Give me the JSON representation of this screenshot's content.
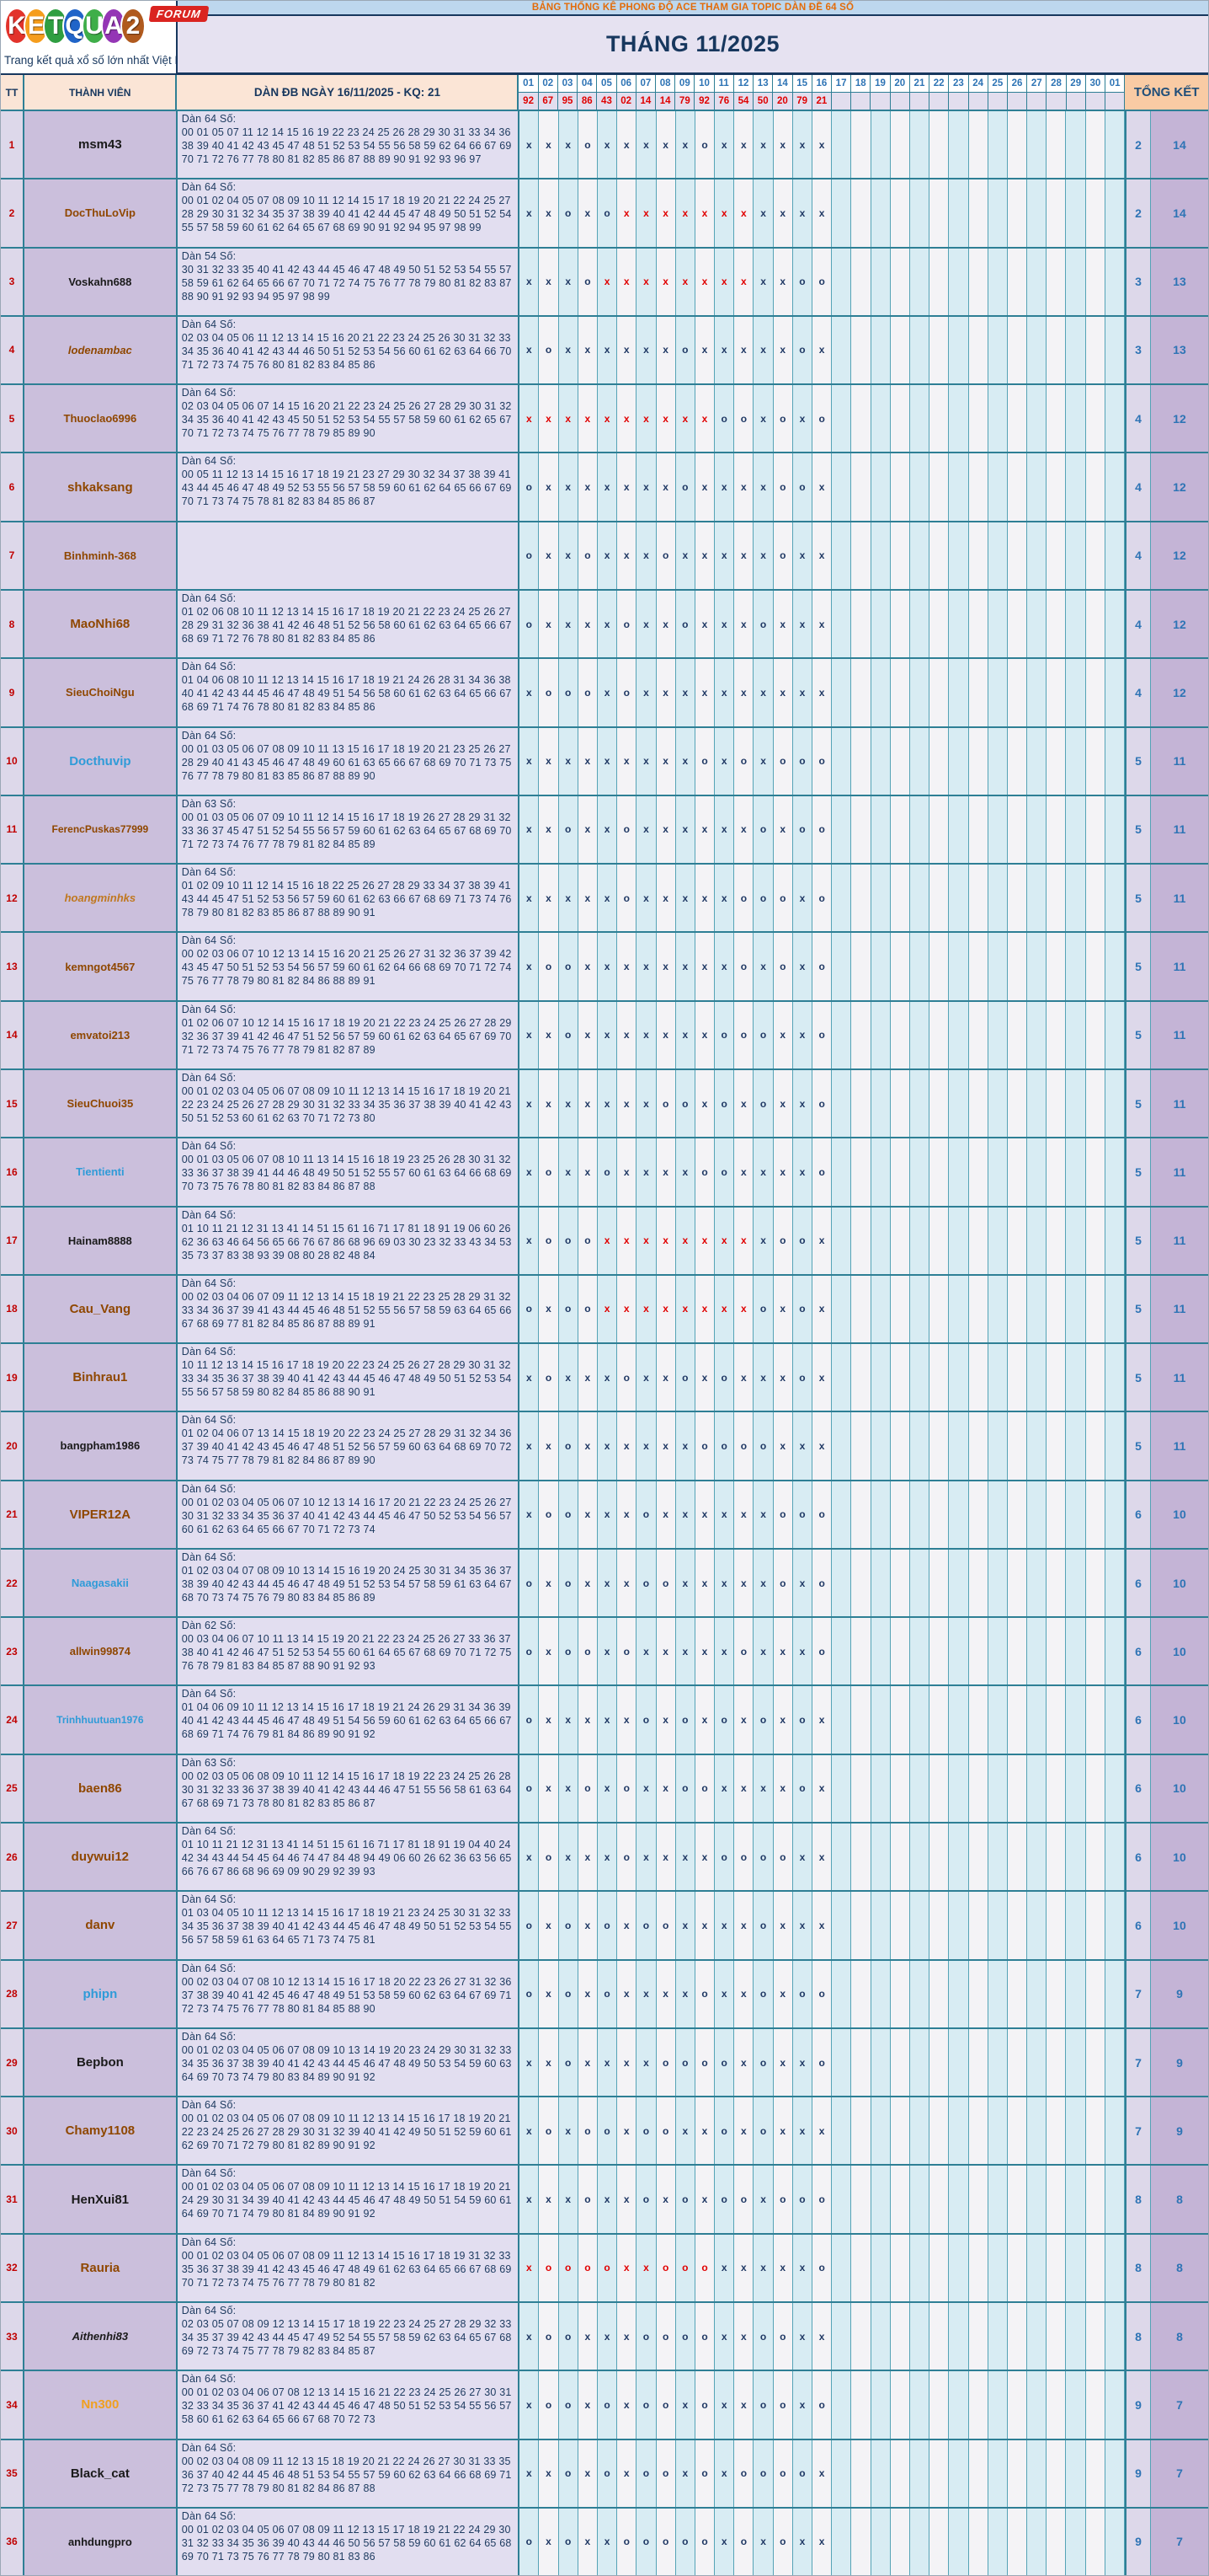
{
  "logo": {
    "letters": [
      {
        "char": "K",
        "color": "#e2332b"
      },
      {
        "char": "E",
        "color": "#f59d1c"
      },
      {
        "char": "T",
        "color": "#2f9e41"
      },
      {
        "char": "Q",
        "color": "#2064c8"
      },
      {
        "char": "U",
        "color": "#3fae49"
      },
      {
        "char": "A",
        "color": "#9436b5"
      },
      {
        "char": "2",
        "color": "#b05a1e"
      }
    ],
    "forum_badge": "FORUM",
    "tagline": "Trang kết quả xổ số lớn nhất Việt Nam"
  },
  "banner": {
    "text": "BẢNG THỐNG KÊ PHONG ĐỘ ACE THAM GIA TOPIC DÀN ĐỀ 64 SỐ"
  },
  "title": "THÁNG 11/2025",
  "table": {
    "headers": {
      "tt": "TT",
      "member": "THÀNH VIÊN",
      "dan": "DÀN ĐB NGÀY 16/11/2025 - KQ: 21",
      "total": "TỔNG KẾT"
    },
    "day_columns": [
      "01",
      "02",
      "03",
      "04",
      "05",
      "06",
      "07",
      "08",
      "09",
      "10",
      "11",
      "12",
      "13",
      "14",
      "15",
      "16",
      "17",
      "18",
      "19",
      "20",
      "21",
      "22",
      "23",
      "24",
      "25",
      "26",
      "27",
      "28",
      "29",
      "30",
      "01"
    ],
    "day_results": [
      "92",
      "67",
      "95",
      "86",
      "43",
      "02",
      "14",
      "14",
      "79",
      "92",
      "76",
      "54",
      "50",
      "20",
      "79",
      "21"
    ],
    "rows": [
      {
        "tt": "1",
        "name": "msm43",
        "color": "#1a1a1a",
        "italic": false,
        "dan_label": "Dàn 64 Số:",
        "dan": "00 01 05 07 11 12 14 15 16 19 22 23 24 25 26 28 29 30 31 33 34 36 38 39 40 41 42 43 45 47 48 51 52 53 54 55 56 58 59 62 64 66 67 69 70 71 72 76 77 78 80 81 82 85 86 87 88 89 90 91 92 93 96 97",
        "marks": "x x x o x x x x x o x x x x x x",
        "o": "2",
        "x": "14"
      },
      {
        "tt": "2",
        "name": "DocThuLoVip",
        "color": "#8f4700",
        "italic": false,
        "dan_label": "Dàn 64 Số:",
        "dan": "00 01 02 04 05 07 08 09 10 11 12 14 15 17 18 19 20 21 22 24 25 27 28 29 30 31 32 34 35 37 38 39 40 41 42 44 45 47 48 49 50 51 52 54 55 57 58 59 60 61 62 64 65 67 68 69 90 91 92 94 95 97 98 99",
        "marks": "x x o x o X X X X X X X x x x x",
        "o": "2",
        "x": "14"
      },
      {
        "tt": "3",
        "name": "Voskahn688",
        "color": "#1a1a1a",
        "italic": false,
        "dan_label": "Dàn 54 Số:",
        "dan": "30 31 32 33 35 40 41 42 43 44 45 46 47 48 49 50 51 52 53 54 55 57 58 59 61 62 64 65 66 67 70 71 72 74 75 76 77 78 79 80 81 82 83 87 88 90 91 92 93 94 95 97 98 99",
        "marks": "x x x o X X X X X X X X x x o o",
        "o": "3",
        "x": "13"
      },
      {
        "tt": "4",
        "name": "lodenambac",
        "color": "#8f4700",
        "italic": true,
        "dan_label": "Dàn 64 Số:",
        "dan": "02 03 04 05 06 11 12 13 14 15 16 20 21 22 23 24 25 26 30 31 32 33 34 35 36 40 41 42 43 44 46 50 51 52 53 54 56 60 61 62 63 64 66 70 71 72 73 74 75 76 80 81 82 83 84 85 86",
        "marks": "x o x x x x x x o x x x x x o x",
        "o": "3",
        "x": "13"
      },
      {
        "tt": "5",
        "name": "Thuoclao6996",
        "color": "#8f4700",
        "italic": false,
        "dan_label": "Dàn 64 Số:",
        "dan": "02 03 04 05 06 07 14 15 16 20 21 22 23 24 25 26 27 28 29 30 31 32 34 35 36 40 41 42 43 45 50 51 52 53 54 55 57 58 59 60 61 62 65 67 70 71 72 73 74 75 76 77 78 79 85 89 90",
        "marks": "X X X X X X X X X X o o x o x o",
        "o": "4",
        "x": "12"
      },
      {
        "tt": "6",
        "name": "shkaksang",
        "color": "#8f4700",
        "italic": false,
        "dan_label": "Dàn 64 Số:",
        "dan": "00 05 11 12 13 14 15 16 17 18 19 21 23 27 29 30 32 34 37 38 39 41 43 44 45 46 47 48 49 52 53 55 56 57 58 59 60 61 62 64 65 66 67 69 70 71 73 74 75 78 81 82 83 84 85 86 87",
        "marks": "o x x x x x x x o x x x x o o x",
        "o": "4",
        "x": "12"
      },
      {
        "tt": "7",
        "name": "Binhminh-368",
        "color": "#8f4700",
        "italic": false,
        "dan_label": "",
        "dan": "",
        "marks": "o x x o x x x o x x x x x o x x",
        "o": "4",
        "x": "12"
      },
      {
        "tt": "8",
        "name": "MaoNhi68",
        "color": "#8f4700",
        "italic": false,
        "dan_label": "Dàn 64 Số:",
        "dan": "01 02 06 08 10 11 12 13 14 15 16 17 18 19 20 21 22 23 24 25 26 27 28 29 31 32 36 38 41 42 46 48 51 52 56 58 60 61 62 63 64 65 66 67 68 69 71 72 76 78 80 81 82 83 84 85 86",
        "marks": "o x x x x o x x o x x x o x x x",
        "o": "4",
        "x": "12"
      },
      {
        "tt": "9",
        "name": "SieuChoiNgu",
        "color": "#8f4700",
        "italic": false,
        "dan_label": "Dàn 64 Số:",
        "dan": "01 04 06 08 10 11 12 13 14 15 16 17 18 19 21 24 26 28 31 34 36 38 40 41 42 43 44 45 46 47 48 49 51 54 56 58 60 61 62 63 64 65 66 67 68 69 71 74 76 78 80 81 82 83 84 85 86",
        "marks": "x o o o x o x x x x x x x x x x",
        "o": "4",
        "x": "12"
      },
      {
        "tt": "10",
        "name": "Docthuvip",
        "color": "#2f9bd8",
        "italic": false,
        "dan_label": "Dàn 64 Số:",
        "dan": "00 01 03 05 06 07 08 09 10 11 13 15 16 17 18 19 20 21 23 25 26 27 28 29 40 41 43 45 46 47 48 49 60 61 63 65 66 67 68 69 70 71 73 75 76 77 78 79 80 81 83 85 86 87 88 89 90",
        "marks": "x x x x x x x x x o x o x o o o",
        "o": "5",
        "x": "11"
      },
      {
        "tt": "11",
        "name": "FerencPuskas77999",
        "color": "#8f4700",
        "italic": false,
        "dan_label": "Dàn 63 Số:",
        "dan": "00 01 03 05 06 07 09 10 11 12 14 15 16 17 18 19 26 27 28 29 31 32 33 36 37 45 47 51 52 54 55 56 57 59 60 61 62 63 64 65 67 68 69 70 71 72 73 74 76 77 78 79 81 82 84 85 89",
        "marks": "x x o x x o x x x x x x o x o o",
        "o": "5",
        "x": "11"
      },
      {
        "tt": "12",
        "name": "hoangminhks",
        "color": "#c07820",
        "italic": true,
        "dan_label": "Dàn 64 Số:",
        "dan": "01 02 09 10 11 12 14 15 16 18 22 25 26 27 28 29 33 34 37 38 39 41 43 44 45 47 51 52 53 56 57 59 60 61 62 63 66 67 68 69 71 73 74 76 78 79 80 81 82 83 85 86 87 88 89 90 91",
        "marks": "x x x x x o x x x x x o o o x o",
        "o": "5",
        "x": "11"
      },
      {
        "tt": "13",
        "name": "kemngot4567",
        "color": "#8f4700",
        "italic": false,
        "dan_label": "Dàn 64 Số:",
        "dan": "00 02 03 06 07 10 12 13 14 15 16 20 21 25 26 27 31 32 36 37 39 42 43 45 47 50 51 52 53 54 56 57 59 60 61 62 64 66 68 69 70 71 72 74 75 76 77 78 79 80 81 82 84 86 88 89 91",
        "marks": "x o o x x x x x x x x o x o x o",
        "o": "5",
        "x": "11"
      },
      {
        "tt": "14",
        "name": "emvatoi213",
        "color": "#8f4700",
        "italic": false,
        "dan_label": "Dàn 64 Số:",
        "dan": "01 02 06 07 10 12 14 15 16 17 18 19 20 21 22 23 24 25 26 27 28 29 32 36 37 39 41 42 46 47 51 52 56 57 59 60 61 62 63 64 65 67 69 70 71 72 73 74 75 76 77 78 79 81 82 87 89",
        "marks": "x x o x x x x x x x o o o x x o",
        "o": "5",
        "x": "11"
      },
      {
        "tt": "15",
        "name": "SieuChuoi35",
        "color": "#8f4700",
        "italic": false,
        "dan_label": "Dàn 64 Số:",
        "dan": "00 01 02 03 04 05 06 07 08 09 10 11 12 13 14 15 16 17 18 19 20 21 22 23 24 25 26 27 28 29 30 31 32 33 34 35 36 37 38 39 40 41 42 43 50 51 52 53 60 61 62 63 70 71 72 73 80",
        "marks": "x x x x x x x o o x o x o x x o",
        "o": "5",
        "x": "11"
      },
      {
        "tt": "16",
        "name": "Tientienti",
        "color": "#2f9bd8",
        "italic": false,
        "dan_label": "Dàn 64 Số:",
        "dan": "00 01 03 05 06 07 08 10 11 13 14 15 16 18 19 23 25 26 28 30 31 32 33 36 37 38 39 41 44 46 48 49 50 51 52 55 57 60 61 63 64 66 68 69 70 73 75 76 78 80 81 82 83 84 86 87 88",
        "marks": "x o x x o x x x x o o x x x x o",
        "o": "5",
        "x": "11"
      },
      {
        "tt": "17",
        "name": "Hainam8888",
        "color": "#1a1a1a",
        "italic": false,
        "dan_label": "Dàn 64 Số:",
        "dan": "01 10 11 21 12 31 13 41 14 51 15 61 16 71 17 81 18 91 19 06 60 26 62 36 63 46 64 56 65 66 76 67 86 68 96 69 03 30 23 32 33 43 34 53 35 73 37 83 38 93 39 08 80 28 82 48 84",
        "marks": "x o o o X X X X X X X X x o o x",
        "o": "5",
        "x": "11"
      },
      {
        "tt": "18",
        "name": "Cau_Vang",
        "color": "#8f4700",
        "italic": false,
        "dan_label": "Dàn 64 Số:",
        "dan": "00 02 03 04 06 07 09 11 12 13 14 15 18 19 21 22 23 25 28 29 31 32 33 34 36 37 39 41 43 44 45 46 48 51 52 55 56 57 58 59 63 64 65 66 67 68 69 77 81 82 84 85 86 87 88 89 91",
        "marks": "o x o o X X X X X X X X o x o x",
        "o": "5",
        "x": "11"
      },
      {
        "tt": "19",
        "name": "Binhrau1",
        "color": "#8f4700",
        "italic": false,
        "dan_label": "Dàn 64 Số:",
        "dan": "10 11 12 13 14 15 16 17 18 19 20 22 23 24 25 26 27 28 29 30 31 32 33 34 35 36 37 38 39 40 41 42 43 44 45 46 47 48 49 50 51 52 53 54 55 56 57 58 59 80 82 84 85 86 88 90 91",
        "marks": "x o x x x o x x o x o x x x o x",
        "o": "5",
        "x": "11"
      },
      {
        "tt": "20",
        "name": "bangpham1986",
        "color": "#1a1a1a",
        "italic": false,
        "dan_label": "Dàn 64 Số:",
        "dan": "01 02 04 06 07 13 14 15 18 19 20 22 23 24 25 27 28 29 31 32 34 36 37 39 40 41 42 43 45 46 47 48 51 52 56 57 59 60 63 64 68 69 70 72 73 74 75 77 78 79 81 82 84 86 87 89 90",
        "marks": "x x o x x x x x x o o o o x x x",
        "o": "5",
        "x": "11"
      },
      {
        "tt": "21",
        "name": "VIPER12A",
        "color": "#8f4700",
        "italic": false,
        "dan_label": "Dàn 64 Số:",
        "dan": "00 01 02 03 04 05 06 07 10 12 13 14 16 17 20 21 22 23 24 25 26 27 30 31 32 33 34 35 36 37 40 41 42 43 44 45 46 47 50 52 53 54 56 57 60 61 62 63 64 65 66 67 70 71 72 73 74",
        "marks": "x o o x x x o x x x x x x o o o",
        "o": "6",
        "x": "10"
      },
      {
        "tt": "22",
        "name": "Naagasakii",
        "color": "#2f9bd8",
        "italic": false,
        "dan_label": "Dàn 64 Số:",
        "dan": "01 02 03 04 07 08 09 10 13 14 15 16 19 20 24 25 30 31 34 35 36 37 38 39 40 42 43 44 45 46 47 48 49 51 52 53 54 57 58 59 61 63 64 67 68 70 73 74 75 76 79 80 83 84 85 86 89",
        "marks": "o x o x x x o o x x x x x o x o",
        "o": "6",
        "x": "10"
      },
      {
        "tt": "23",
        "name": "allwin99874",
        "color": "#8f4700",
        "italic": false,
        "dan_label": "Dàn 62 Số:",
        "dan": "00 03 04 06 07 10 11 13 14 15 19 20 21 22 23 24 25 26 27 33 36 37 38 40 41 42 46 47 51 52 53 54 55 60 61 64 65 67 68 69 70 71 72 75 76 78 79 81 83 84 85 87 88 90 91 92 93",
        "marks": "o x o o x o x x x x x o x x x o",
        "o": "6",
        "x": "10"
      },
      {
        "tt": "24",
        "name": "Trinhhuutuan1976",
        "color": "#2f9bd8",
        "italic": false,
        "dan_label": "Dàn 64 Số:",
        "dan": "01 04 06 09 10 11 12 13 14 15 16 17 18 19 21 24 26 29 31 34 36 39 40 41 42 43 44 45 46 47 48 49 51 54 56 59 60 61 62 63 64 65 66 67 68 69 71 74 76 79 81 84 86 89 90 91 92",
        "marks": "o x x x x x o x o x o x o x o x",
        "o": "6",
        "x": "10"
      },
      {
        "tt": "25",
        "name": "baen86",
        "color": "#8f4700",
        "italic": false,
        "dan_label": "Dàn 63 Số:",
        "dan": "00 02 03 05 06 08 09 10 11 12 14 15 16 17 18 19 22 23 24 25 26 28 30 31 32 33 36 37 38 39 40 41 42 43 44 46 47 51 55 56 58 61 63 64 67 68 69 71 73 78 80 81 82 83 85 86 87",
        "marks": "o x x o x o x x o o x x x x o x",
        "o": "6",
        "x": "10"
      },
      {
        "tt": "26",
        "name": "duywui12",
        "color": "#8f4700",
        "italic": false,
        "dan_label": "Dàn 64 Số:",
        "dan": "01 10 11 21 12 31 13 41 14 51 15 61 16 71 17 81 18 91 19 04 40 24 42 34 43 44 54 45 64 46 74 47 84 48 94 49 06 60 26 62 36 63 56 65 66 76 67 86 68 96 69 09 90 29 92 39 93",
        "marks": "x o x x x o x x x x o o o o x x",
        "o": "6",
        "x": "10"
      },
      {
        "tt": "27",
        "name": "danv",
        "color": "#8f4700",
        "italic": false,
        "dan_label": "Dàn 64 Số:",
        "dan": "01 03 04 05 10 11 12 13 14 15 16 17 18 19 21 23 24 25 30 31 32 33 34 35 36 37 38 39 40 41 42 43 44 45 46 47 48 49 50 51 52 53 54 55 56 57 58 59 61 63 64 65 71 73 74 75 81",
        "marks": "o x o x o x o o x x x x o x x x",
        "o": "6",
        "x": "10"
      },
      {
        "tt": "28",
        "name": "phipn",
        "color": "#2f9bd8",
        "italic": false,
        "dan_label": "Dàn 64 Số:",
        "dan": "00 02 03 04 07 08 10 12 13 14 15 16 17 18 20 22 23 26 27 31 32 36 37 38 39 40 41 42 45 46 47 48 49 51 53 58 59 60 62 63 64 67 69 71 72 73 74 75 76 77 78 80 81 84 85 88 90",
        "marks": "o x o x o x x x x o x x o x o o",
        "o": "7",
        "x": "9"
      },
      {
        "tt": "29",
        "name": "Bepbon",
        "color": "#1a1a1a",
        "italic": false,
        "dan_label": "Dàn 64 Số:",
        "dan": "00 01 02 03 04 05 06 07 08 09 10 13 14 19 20 23 24 29 30 31 32 33 34 35 36 37 38 39 40 41 42 43 44 45 46 47 48 49 50 53 54 59 60 63 64 69 70 73 74 79 80 83 84 89 90 91 92",
        "marks": "x x o x x x x o o o o x o x x o",
        "o": "7",
        "x": "9"
      },
      {
        "tt": "30",
        "name": "Chamy1108",
        "color": "#8f4700",
        "italic": false,
        "dan_label": "Dàn 64 Số:",
        "dan": "00 01 02 03 04 05 06 07 08 09 10 11 12 13 14 15 16 17 18 19 20 21 22 23 24 25 26 27 28 29 30 31 32 39 40 41 42 49 50 51 52 59 60 61 62 69 70 71 72 79 80 81 82 89 90 91 92",
        "marks": "x o x o o x o o x x o x o x x x",
        "o": "7",
        "x": "9"
      },
      {
        "tt": "31",
        "name": "HenXui81",
        "color": "#1a1a1a",
        "italic": false,
        "dan_label": "Dàn 64 Số:",
        "dan": "00 01 02 03 04 05 06 07 08 09 10 11 12 13 14 15 16 17 18 19 20 21 24 29 30 31 34 39 40 41 42 43 44 45 46 47 48 49 50 51 54 59 60 61 64 69 70 71 74 79 80 81 84 89 90 91 92",
        "marks": "x x x o x x o x o x o o x o o o",
        "o": "8",
        "x": "8"
      },
      {
        "tt": "32",
        "name": "Rauria",
        "color": "#8f4700",
        "italic": false,
        "dan_label": "Dàn 64 Số:",
        "dan": "00 01 02 03 04 05 06 07 08 09 11 12 13 14 15 16 17 18 19 31 32 33 35 36 37 38 39 41 42 43 45 46 47 48 49 61 62 63 64 65 66 67 68 69 70 71 72 73 74 75 76 77 78 79 80 81 82",
        "marks": "X O O O O X X O O O x x x x x o",
        "o": "8",
        "x": "8"
      },
      {
        "tt": "33",
        "name": "Aithenhi83",
        "color": "#1a1a1a",
        "italic": true,
        "dan_label": "Dàn 64 Số:",
        "dan": "02 03 05 07 08 09 12 13 14 15 17 18 19 22 23 24 25 27 28 29 32 33 34 35 37 39 42 43 44 45 47 49 52 54 55 57 58 59 62 63 64 65 67 68 69 72 73 74 75 77 78 79 82 83 84 85 87",
        "marks": "x o o x x x o o o o x x o o x x",
        "o": "8",
        "x": "8"
      },
      {
        "tt": "34",
        "name": "Nn300",
        "color": "#f0a020",
        "italic": false,
        "dan_label": "Dàn 64 Số:",
        "dan": "00 01 02 03 04 06 07 08 12 13 14 15 16 21 22 23 24 25 26 27 30 31 32 33 34 35 36 37 41 42 43 44 45 46 47 48 50 51 52 53 54 55 56 57 58 60 61 62 63 64 65 66 67 68 70 72 73",
        "marks": "x o o x o x o o x o x x o o x o",
        "o": "9",
        "x": "7"
      },
      {
        "tt": "35",
        "name": "Black_cat",
        "color": "#1a1a1a",
        "italic": false,
        "dan_label": "Dàn 64 Số:",
        "dan": "00 02 03 04 08 09 11 12 13 15 18 19 20 21 22 24 26 27 30 31 33 35 36 37 40 42 44 45 46 48 51 53 54 55 57 59 60 62 63 64 66 68 69 71 72 73 75 77 78 79 80 81 82 84 86 87 88",
        "marks": "x x o x o x o o x o x o o o o x",
        "o": "9",
        "x": "7"
      },
      {
        "tt": "36",
        "name": "anhdungpro",
        "color": "#1a1a1a",
        "italic": false,
        "dan_label": "Dàn 64 Số:",
        "dan": "00 01 02 03 04 05 06 07 08 09 11 12 13 15 17 18 19 21 22 24 29 30 31 32 33 34 35 36 39 40 43 44 46 50 56 57 58 59 60 61 62 64 65 68 69 70 71 73 75 76 77 78 79 80 81 83 86",
        "marks": "o x o x x o o o o o x o x o x x",
        "o": "9",
        "x": "7"
      }
    ]
  }
}
